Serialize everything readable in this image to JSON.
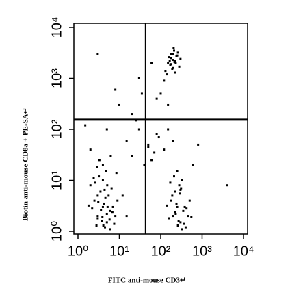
{
  "chart_data": {
    "type": "scatter",
    "x_label": "FITC anti-mouse CD3↵",
    "y_label": "Biotin anti-mouse CD8a + PE-SA↵",
    "log_x": true,
    "log_y": true,
    "xlim": [
      1,
      10000
    ],
    "ylim": [
      1,
      10000
    ],
    "xticks": [
      {
        "value": 1,
        "label": "10⁰"
      },
      {
        "value": 10,
        "label": "10¹"
      },
      {
        "value": 100,
        "label": "10²"
      },
      {
        "value": 1000,
        "label": "10³"
      },
      {
        "value": 10000,
        "label": "10⁴"
      }
    ],
    "yticks": [
      {
        "value": 1,
        "label": "10⁰"
      },
      {
        "value": 10,
        "label": "10¹"
      },
      {
        "value": 100,
        "label": "10²"
      },
      {
        "value": 1000,
        "label": "10³"
      },
      {
        "value": 10000,
        "label": "10⁴"
      }
    ],
    "quadrant_x": 43,
    "quadrant_y": 155,
    "series": [
      {
        "color": "#000000",
        "x": [
          3,
          4,
          5,
          2.5,
          6,
          3.5,
          4.5,
          7,
          2,
          5.5,
          3,
          4,
          8,
          2.8,
          6.5,
          3.2,
          4.2,
          5,
          9,
          2.2,
          3.8,
          4.8,
          6,
          3,
          4,
          5.2,
          2.6,
          7.5,
          3.6,
          4.4,
          1.8,
          5.8,
          3.3,
          4.6,
          6.8,
          2.4,
          3.9,
          5.1,
          4.1,
          3.1,
          12,
          15,
          8.5,
          6.2,
          2.9,
          200,
          250,
          300,
          180,
          350,
          220,
          400,
          280,
          160,
          320,
          240,
          450,
          190,
          260,
          310,
          210,
          380,
          230,
          500,
          270,
          170,
          330,
          290,
          420,
          250,
          140,
          360,
          300,
          220,
          550,
          150,
          180,
          200,
          220,
          170,
          250,
          190,
          210,
          160,
          230,
          140,
          260,
          200,
          180,
          240,
          120,
          300,
          195,
          175,
          215,
          130,
          280,
          205,
          165,
          225,
          20,
          50,
          80,
          30,
          15,
          120,
          60,
          25,
          40,
          90,
          10,
          35,
          70,
          150,
          200,
          600,
          800,
          4000,
          5,
          8,
          2,
          3,
          60,
          30,
          20,
          100,
          150,
          50,
          80,
          1.5
        ],
        "values": [
          2,
          3,
          1.5,
          4,
          2.5,
          6,
          1.2,
          3,
          8,
          5,
          1.8,
          10,
          2,
          1.3,
          7,
          12,
          3.5,
          2.2,
          4,
          2.8,
          1.6,
          15,
          1.1,
          5,
          20,
          3,
          9,
          1.4,
          2.6,
          6.5,
          3.2,
          1.7,
          25,
          4.5,
          2.4,
          11,
          1.9,
          8,
          1.3,
          3.8,
          5,
          2,
          14,
          30,
          18,
          2,
          3,
          1.5,
          4,
          2.5,
          6,
          1.2,
          8,
          1.8,
          10,
          3.5,
          2,
          5,
          1.3,
          7,
          12,
          3,
          2.2,
          4,
          1.6,
          9,
          1.1,
          5.5,
          2.8,
          15,
          3.2,
          1.4,
          6.5,
          2.4,
          1.9,
          2000,
          2500,
          3000,
          2200,
          1800,
          2800,
          1500,
          3500,
          2600,
          2000,
          1200,
          3200,
          2300,
          1900,
          2700,
          900,
          2400,
          1600,
          3000,
          2100,
          1400,
          1700,
          4000,
          2200,
          1300,
          30,
          50,
          80,
          100,
          60,
          40,
          25,
          150,
          20,
          70,
          300,
          500,
          35,
          100,
          60,
          20,
          50,
          8,
          100,
          600,
          40,
          3000,
          2000,
          1000,
          200,
          500,
          300,
          45,
          400,
          120
        ]
      }
    ]
  }
}
